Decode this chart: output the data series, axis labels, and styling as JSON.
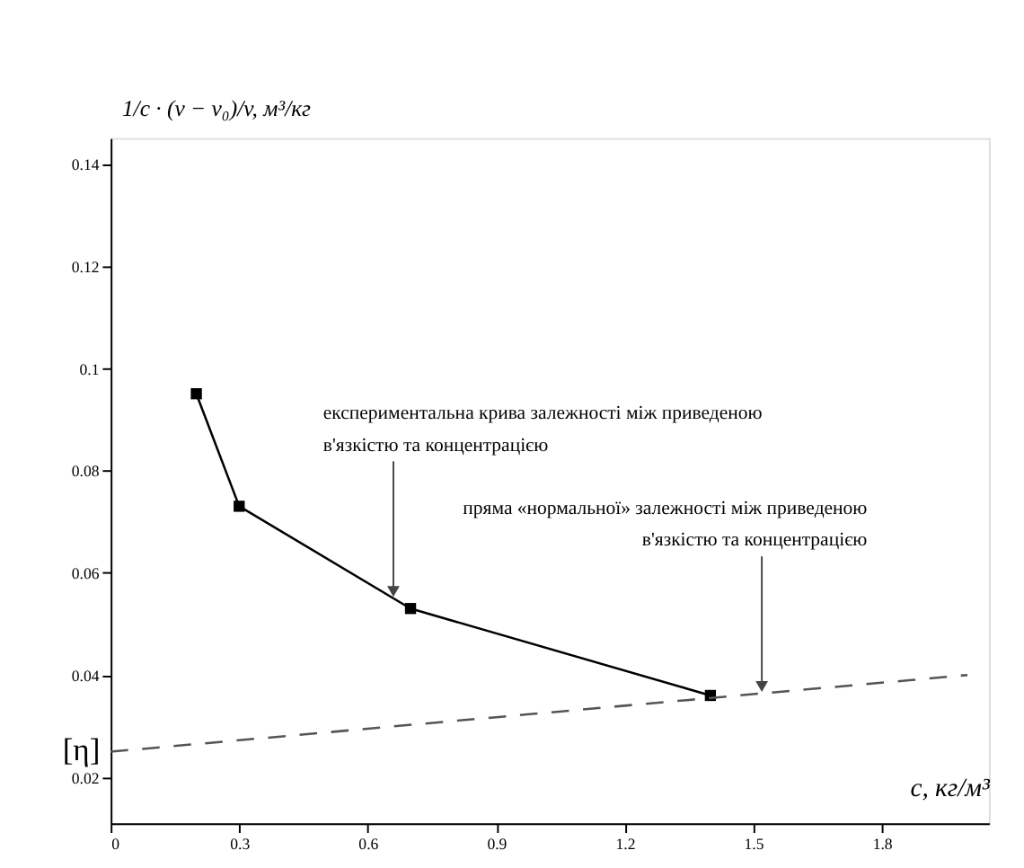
{
  "chart_data": {
    "type": "line",
    "xlabel": "c, кг/м³",
    "ylabel": "1/c · (v − v₀)/v, м³/кг",
    "xlim": [
      0,
      2.05
    ],
    "ylim": [
      0.011,
      0.145
    ],
    "xticks": [
      0,
      0.3,
      0.6,
      0.9,
      1.2,
      1.5,
      1.8
    ],
    "yticks": [
      0.02,
      0.04,
      0.06,
      0.08,
      0.1,
      0.12,
      0.14
    ],
    "grid": false,
    "series": [
      {
        "x": [
          0.2,
          0.3,
          0.7,
          1.4
        ],
        "values": [
          0.095,
          0.073,
          0.053,
          0.036
        ],
        "color": "#000000",
        "marker": "square",
        "line_style": "solid"
      },
      {
        "x": [
          0,
          2.0
        ],
        "values": [
          0.025,
          0.04
        ],
        "color": "#555555",
        "marker": "none",
        "line_style": "dashed"
      }
    ],
    "annotations": [
      {
        "text": "експериментальна крива залежності між приведеною в'язкістю та концентрацією",
        "x": 0.66,
        "y": 0.055
      },
      {
        "text": "пряма «нормальної» залежності між приведеною в'язкістю та концентрацією",
        "x": 1.52,
        "y": 0.0364
      },
      {
        "text": "[η]",
        "x": 0,
        "y": 0.025
      }
    ]
  }
}
